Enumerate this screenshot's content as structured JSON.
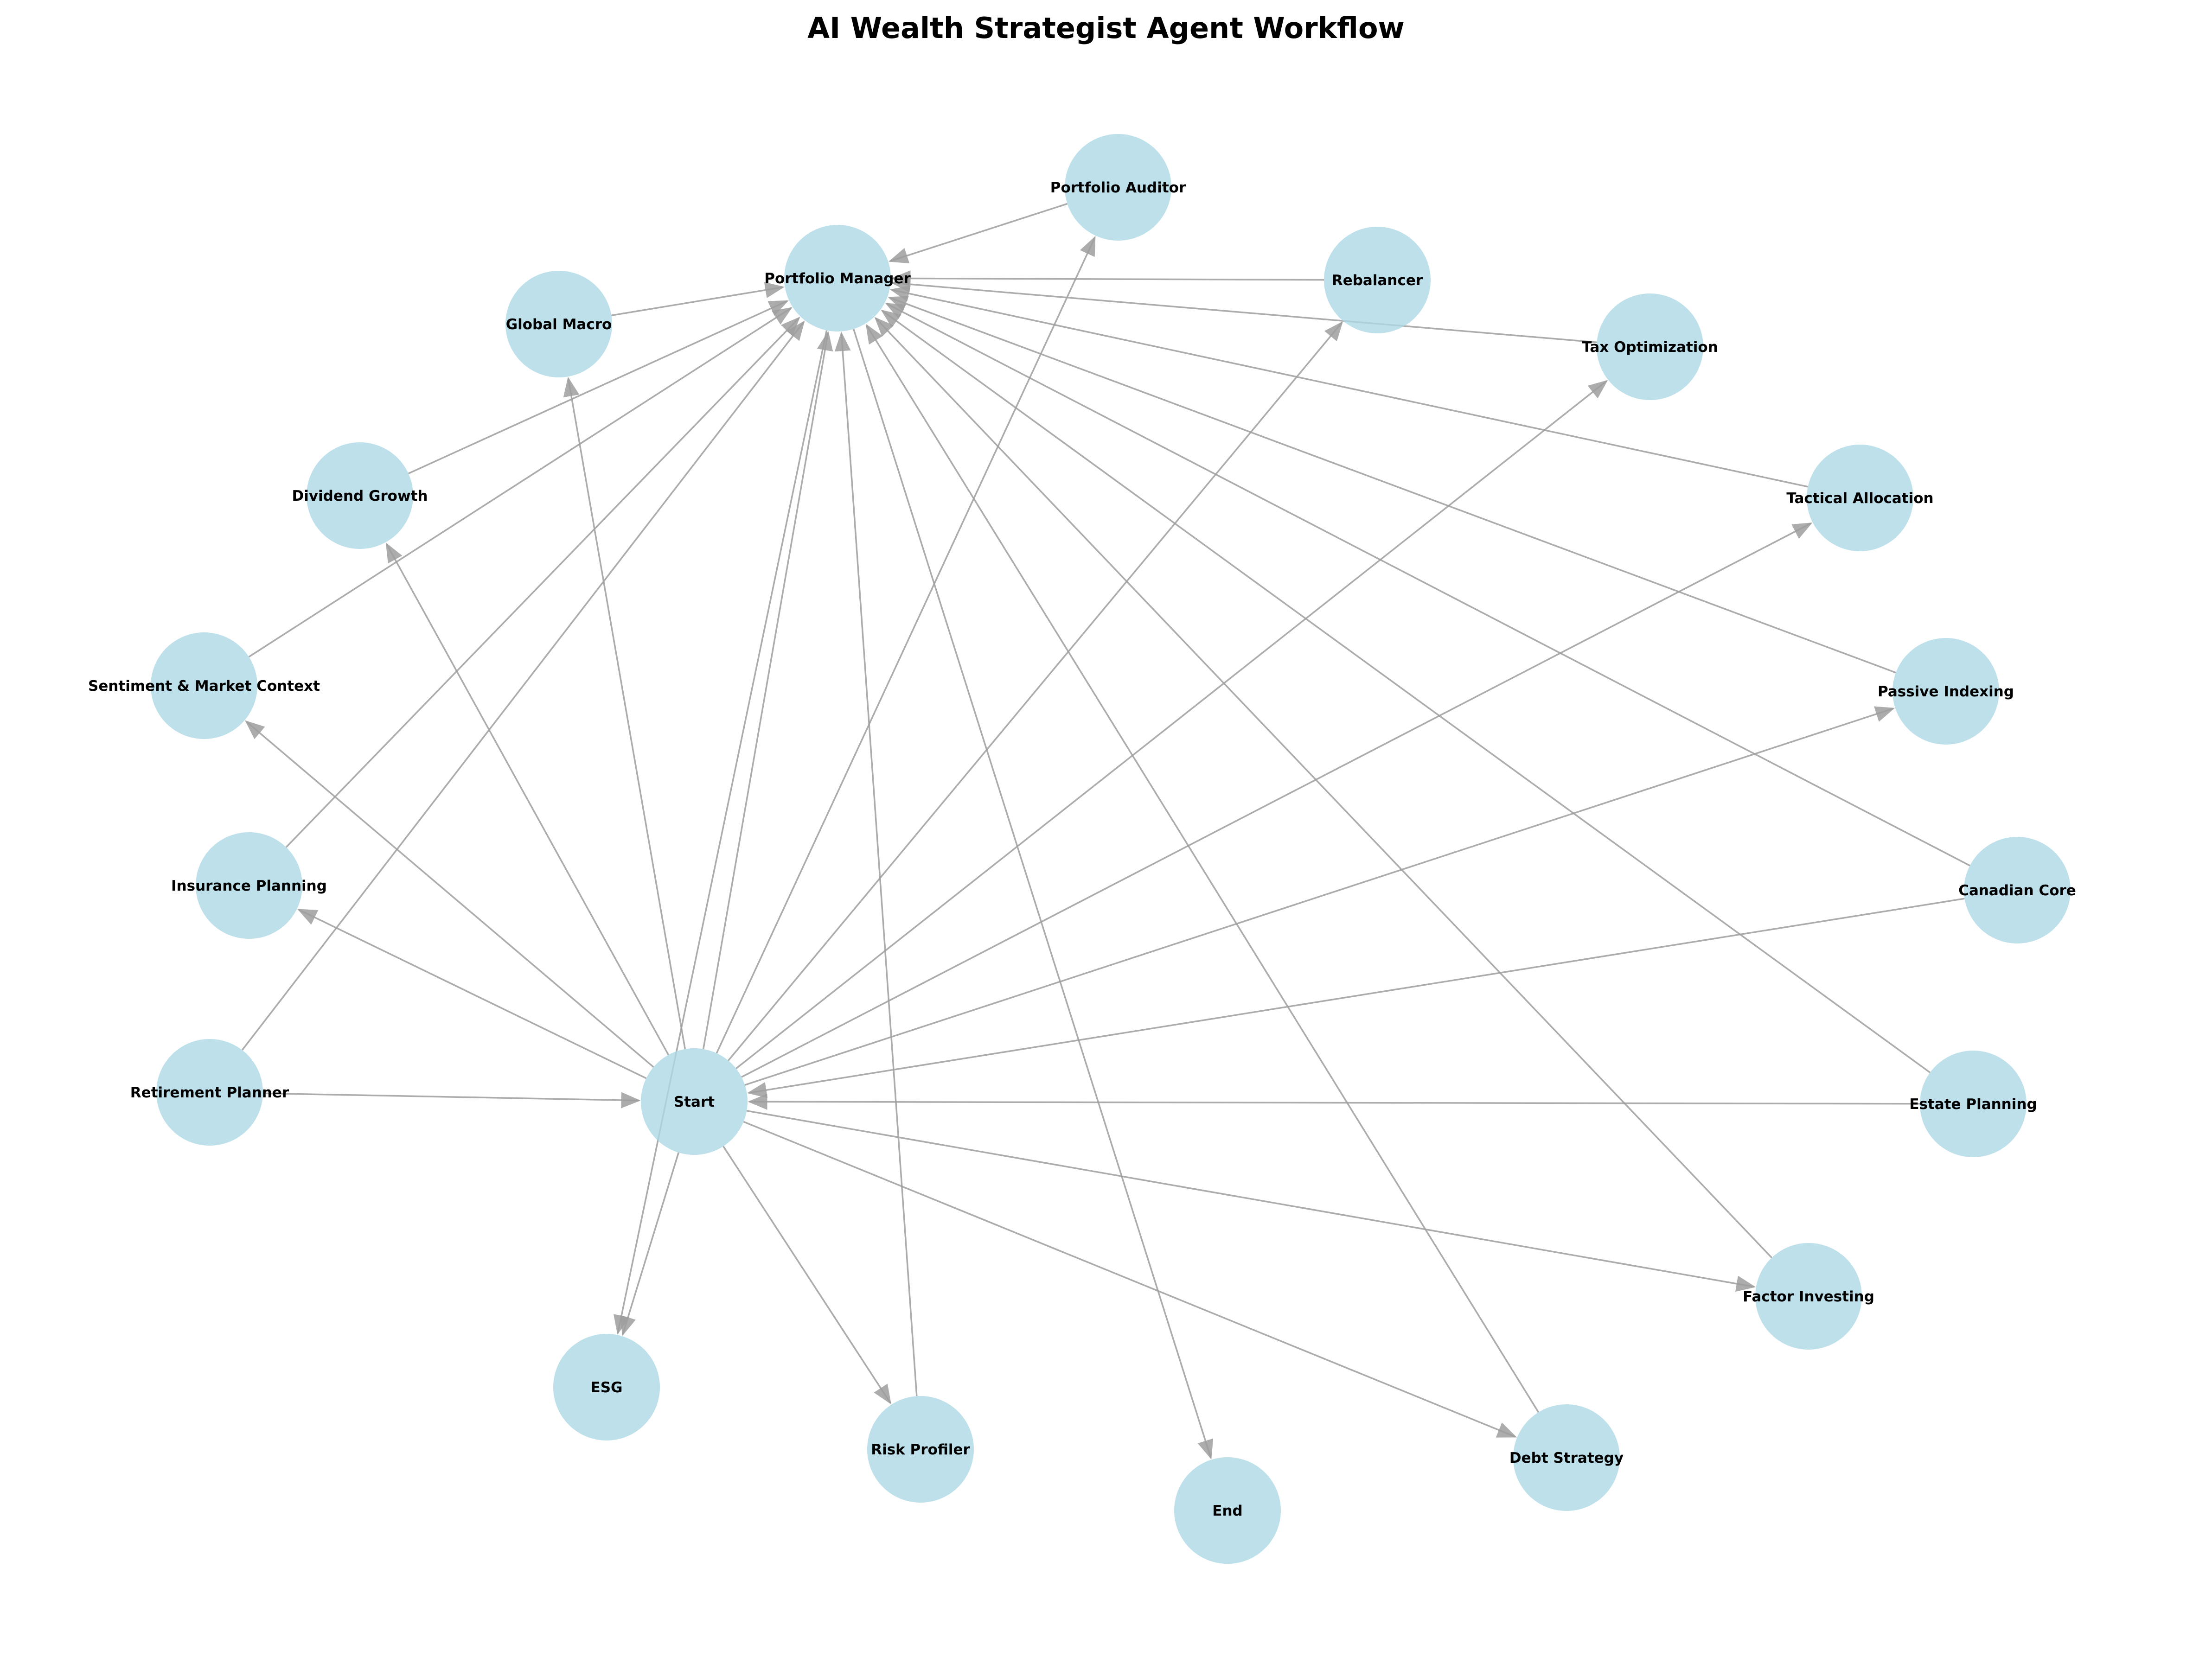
{
  "title": "AI Wealth Strategist Agent Workflow",
  "colors": {
    "node_fill": "#add8e6",
    "edge": "#9e9e9e",
    "text": "#000000",
    "background": "#ffffff"
  },
  "nodes": [
    {
      "id": "start",
      "label": "Start"
    },
    {
      "id": "portfolio_manager",
      "label": "Portfolio Manager"
    },
    {
      "id": "portfolio_auditor",
      "label": "Portfolio Auditor"
    },
    {
      "id": "rebalancer",
      "label": "Rebalancer"
    },
    {
      "id": "tax_optimization",
      "label": "Tax Optimization"
    },
    {
      "id": "tactical_allocation",
      "label": "Tactical Allocation"
    },
    {
      "id": "passive_indexing",
      "label": "Passive Indexing"
    },
    {
      "id": "canadian_core",
      "label": "Canadian Core"
    },
    {
      "id": "estate_planning",
      "label": "Estate Planning"
    },
    {
      "id": "factor_investing",
      "label": "Factor Investing"
    },
    {
      "id": "debt_strategy",
      "label": "Debt Strategy"
    },
    {
      "id": "end",
      "label": "End"
    },
    {
      "id": "risk_profiler",
      "label": "Risk Profiler"
    },
    {
      "id": "esg",
      "label": "ESG"
    },
    {
      "id": "retirement_planner",
      "label": "Retirement Planner"
    },
    {
      "id": "insurance_planning",
      "label": "Insurance Planning"
    },
    {
      "id": "sentiment",
      "label": "Sentiment & Market Context"
    },
    {
      "id": "dividend_growth",
      "label": "Dividend Growth"
    },
    {
      "id": "global_macro",
      "label": "Global Macro"
    }
  ],
  "edges": [
    {
      "from": "start",
      "to": "risk_profiler"
    },
    {
      "from": "start",
      "to": "esg"
    },
    {
      "from": "start",
      "to": "global_macro"
    },
    {
      "from": "start",
      "to": "dividend_growth"
    },
    {
      "from": "start",
      "to": "sentiment"
    },
    {
      "from": "start",
      "to": "insurance_planning"
    },
    {
      "from": "start",
      "to": "portfolio_auditor"
    },
    {
      "from": "start",
      "to": "rebalancer"
    },
    {
      "from": "start",
      "to": "tax_optimization"
    },
    {
      "from": "start",
      "to": "tactical_allocation"
    },
    {
      "from": "start",
      "to": "passive_indexing"
    },
    {
      "from": "start",
      "to": "factor_investing"
    },
    {
      "from": "start",
      "to": "debt_strategy"
    },
    {
      "from": "start",
      "to": "portfolio_manager"
    },
    {
      "from": "retirement_planner",
      "to": "start"
    },
    {
      "from": "canadian_core",
      "to": "start"
    },
    {
      "from": "estate_planning",
      "to": "start"
    },
    {
      "from": "risk_profiler",
      "to": "portfolio_manager"
    },
    {
      "from": "global_macro",
      "to": "portfolio_manager"
    },
    {
      "from": "dividend_growth",
      "to": "portfolio_manager"
    },
    {
      "from": "sentiment",
      "to": "portfolio_manager"
    },
    {
      "from": "insurance_planning",
      "to": "portfolio_manager"
    },
    {
      "from": "retirement_planner",
      "to": "portfolio_manager"
    },
    {
      "from": "rebalancer",
      "to": "portfolio_manager"
    },
    {
      "from": "tax_optimization",
      "to": "portfolio_manager"
    },
    {
      "from": "tactical_allocation",
      "to": "portfolio_manager"
    },
    {
      "from": "passive_indexing",
      "to": "portfolio_manager"
    },
    {
      "from": "canadian_core",
      "to": "portfolio_manager"
    },
    {
      "from": "estate_planning",
      "to": "portfolio_manager"
    },
    {
      "from": "factor_investing",
      "to": "portfolio_manager"
    },
    {
      "from": "debt_strategy",
      "to": "portfolio_manager"
    },
    {
      "from": "portfolio_auditor",
      "to": "portfolio_manager"
    },
    {
      "from": "portfolio_manager",
      "to": "esg"
    },
    {
      "from": "portfolio_manager",
      "to": "end"
    }
  ]
}
